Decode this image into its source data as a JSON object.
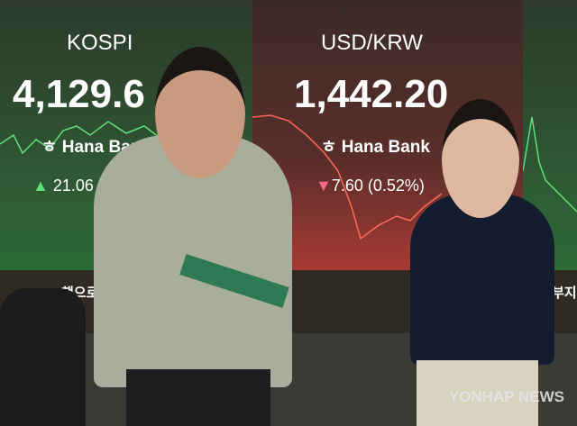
{
  "board": {
    "kospi": {
      "label": "KOSPI",
      "value": "4,129.6",
      "bank": "Hana Bank",
      "change": "21.06 (",
      "direction": "up",
      "color": "#3fbf6a"
    },
    "usdkrw": {
      "label": "USD/KRW",
      "value": "1,442.20",
      "bank": "Hana Bank",
      "change": "7.60 (0.52%)",
      "direction": "down",
      "color": "#e0506a"
    },
    "ticker_left": "책으로",
    "ticker_right": "부지"
  },
  "watermark": "YONHAP NEWS"
}
